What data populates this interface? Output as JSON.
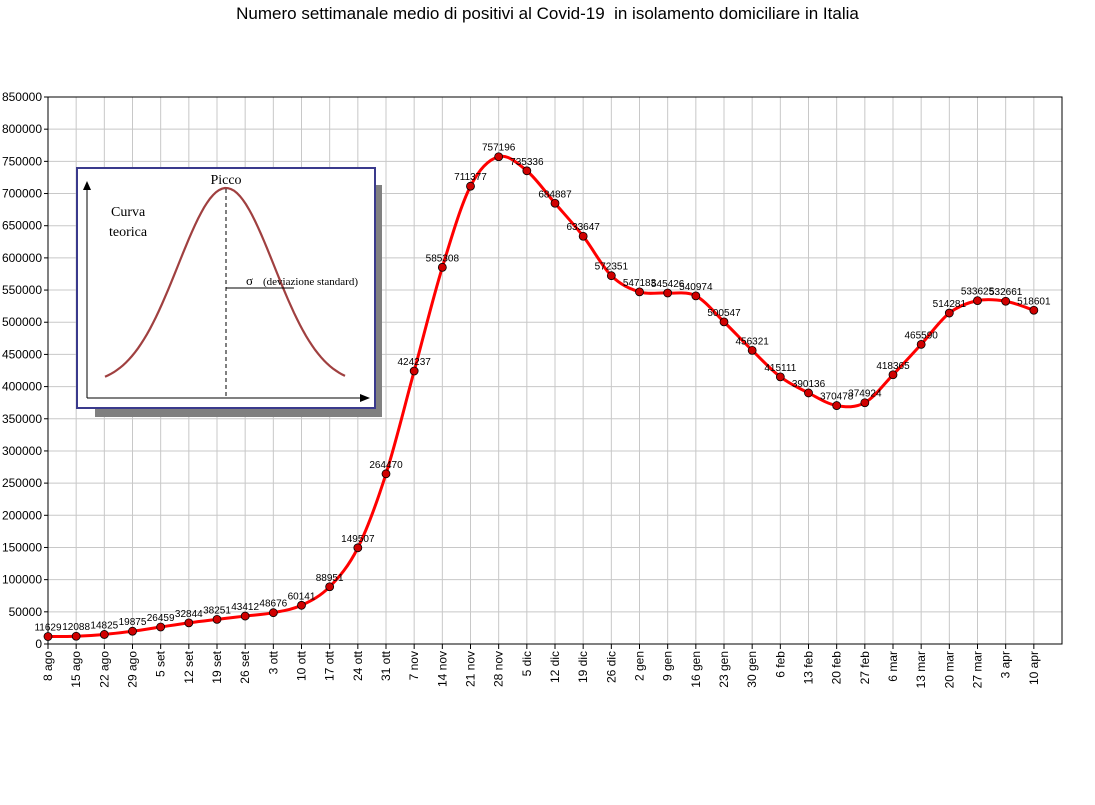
{
  "chart_data": {
    "type": "line",
    "title": "Numero settimanale medio di positivi al Covid-19  in isolamento domiciliare in Italia",
    "xlabel": "",
    "ylabel": "",
    "ylim": [
      0,
      850000
    ],
    "ytick_step": 50000,
    "grid": true,
    "line_color": "#ff0000",
    "marker_color": "#d00000",
    "categories": [
      "8 ago",
      "15 ago",
      "22 ago",
      "29 ago",
      "5 set",
      "12 set",
      "19 set",
      "26 set",
      "3 ott",
      "10 ott",
      "17 ott",
      "24 ott",
      "31 ott",
      "7 nov",
      "14 nov",
      "21 nov",
      "28 nov",
      "5 dic",
      "12 dic",
      "19 dic",
      "26 dic",
      "2 gen",
      "9 gen",
      "16 gen",
      "23 gen",
      "30 gen",
      "6 feb",
      "13 feb",
      "20 feb",
      "27 feb",
      "6 mar",
      "13 mar",
      "20 mar",
      "27 mar",
      "3 apr",
      "10 apr"
    ],
    "series": [
      {
        "values": [
          11629,
          12088,
          14825,
          19875,
          26459,
          32844,
          38251,
          43412,
          48676,
          60141,
          88951,
          149507,
          264470,
          424237,
          585308,
          711377,
          757196,
          735336,
          684887,
          633647,
          572351,
          547183,
          545426,
          540974,
          500547,
          456321,
          415111,
          390136,
          370478,
          374924,
          418365,
          465590,
          514281,
          533625,
          532661,
          518601
        ]
      }
    ],
    "inset": {
      "title": "Picco",
      "curve_label_1": "Curva",
      "curve_label_2": "teorica",
      "sigma_symbol": "σ",
      "sigma_text": "(deviazione standard)"
    }
  }
}
